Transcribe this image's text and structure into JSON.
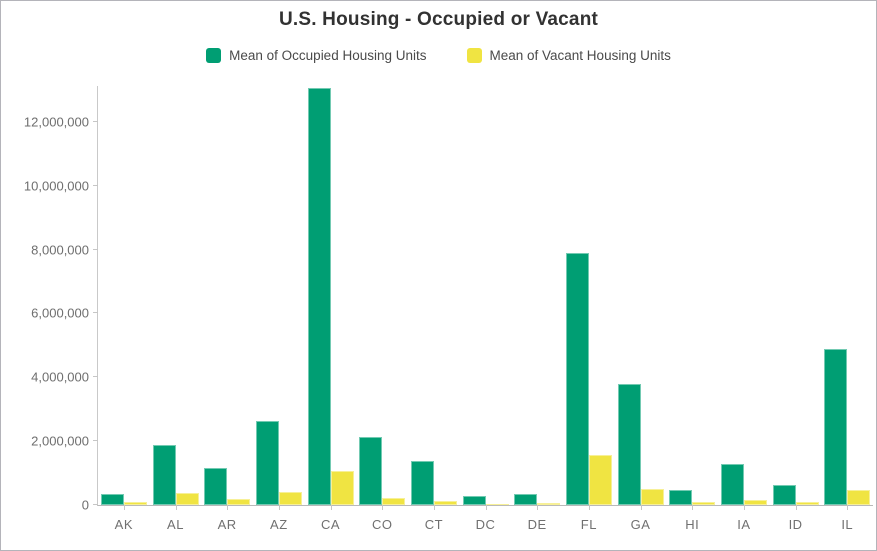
{
  "header": {
    "title": "U.S. Housing - Occupied or Vacant"
  },
  "colors": {
    "occupied": "#009E73",
    "vacant": "#F0E442",
    "axis_line": "#c9c9c9",
    "baseline": "#b9b9b9",
    "tick_text": "#6e6e6e",
    "title_text": "#323232",
    "legend_text": "#4a4a4a",
    "frame_border": "#b4b4ba"
  },
  "chart_data": {
    "type": "bar",
    "title": "U.S. Housing - Occupied or Vacant",
    "xlabel": "",
    "ylabel": "",
    "grid": false,
    "legend_position": "top",
    "categories": [
      "AK",
      "AL",
      "AR",
      "AZ",
      "CA",
      "CO",
      "CT",
      "DC",
      "DE",
      "FL",
      "GA",
      "HI",
      "IA",
      "ID",
      "IL"
    ],
    "series": [
      {
        "name": "Mean of Occupied Housing Units",
        "color": "#009E73",
        "values": [
          340000,
          1890000,
          1150000,
          2630000,
          13060000,
          2130000,
          1370000,
          280000,
          350000,
          7900000,
          3800000,
          470000,
          1280000,
          630000,
          4900000
        ]
      },
      {
        "name": "Mean of Vacant Housing Units",
        "color": "#F0E442",
        "values": [
          95000,
          380000,
          195000,
          400000,
          1070000,
          210000,
          135000,
          45000,
          70000,
          1580000,
          490000,
          85000,
          145000,
          100000,
          480000
        ]
      }
    ],
    "ylim": [
      0,
      13150000
    ],
    "yticks": [
      0,
      2000000,
      4000000,
      6000000,
      8000000,
      10000000,
      12000000
    ],
    "ytick_labels": [
      "0",
      "2,000,000",
      "4,000,000",
      "6,000,000",
      "8,000,000",
      "10,000,000",
      "12,000,000"
    ]
  }
}
